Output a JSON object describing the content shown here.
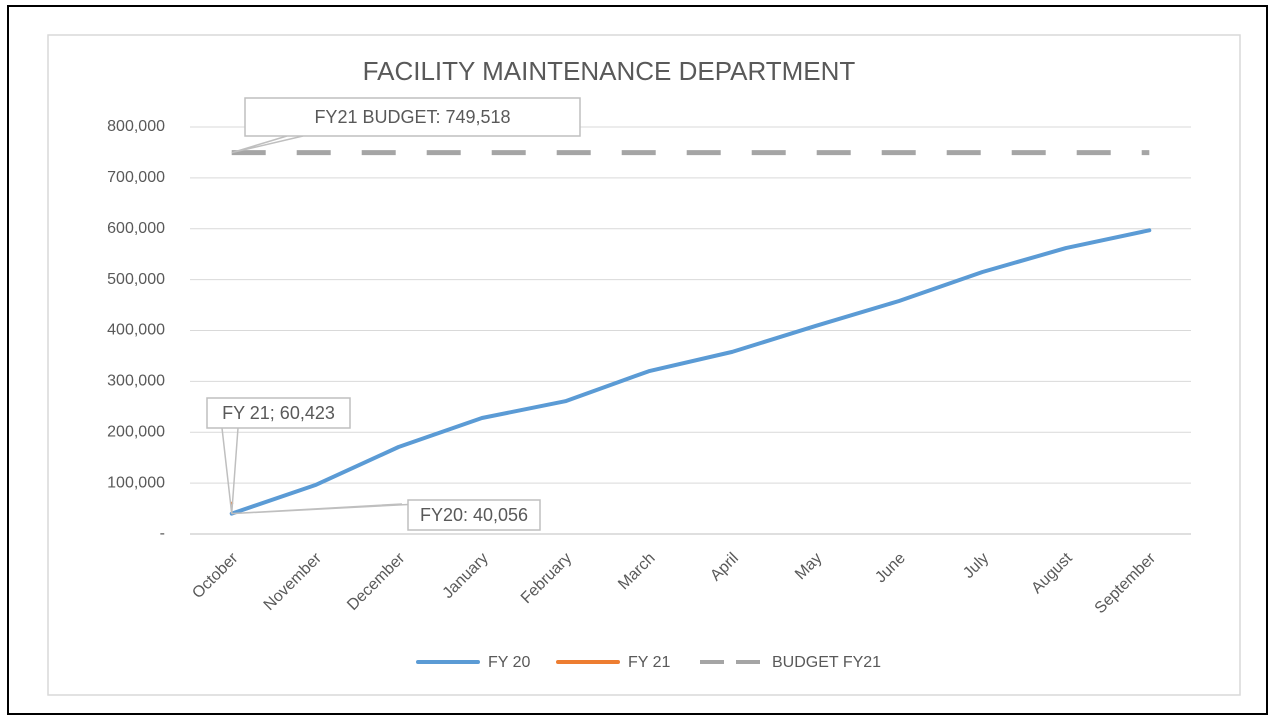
{
  "chart_data": {
    "type": "line",
    "title": "FACILITY MAINTENANCE DEPARTMENT",
    "categories": [
      "October",
      "November",
      "December",
      "January",
      "February",
      "March",
      "April",
      "May",
      "June",
      "July",
      "August",
      "September"
    ],
    "series": [
      {
        "name": "FY 20",
        "color": "#5b9bd5",
        "values": [
          40056,
          96000,
          171000,
          228000,
          261000,
          320000,
          358000,
          409000,
          458000,
          515000,
          562000,
          597000
        ],
        "value_labels": [
          "FY20: 40,056",
          null,
          null,
          null,
          null,
          null,
          null,
          null,
          null,
          null,
          null,
          null
        ]
      },
      {
        "name": "FY 21",
        "color": "#ed7d31",
        "values": [
          60423,
          null,
          null,
          null,
          null,
          null,
          null,
          null,
          null,
          null,
          null,
          null
        ],
        "value_labels": [
          "FY 21; 60,423",
          null,
          null,
          null,
          null,
          null,
          null,
          null,
          null,
          null,
          null,
          null
        ]
      },
      {
        "name": "BUDGET FY21",
        "color": "#a5a5a5",
        "dashed": true,
        "values": [
          749518,
          749518,
          749518,
          749518,
          749518,
          749518,
          749518,
          749518,
          749518,
          749518,
          749518,
          749518
        ],
        "value_labels": [
          "FY21 BUDGET: 749,518",
          null,
          null,
          null,
          null,
          null,
          null,
          null,
          null,
          null,
          null,
          null
        ]
      }
    ],
    "ylim": [
      0,
      800000
    ],
    "yticks": [
      {
        "value": 0,
        "label": "-"
      },
      {
        "value": 100000,
        "label": "100,000"
      },
      {
        "value": 200000,
        "label": "200,000"
      },
      {
        "value": 300000,
        "label": "300,000"
      },
      {
        "value": 400000,
        "label": "400,000"
      },
      {
        "value": 500000,
        "label": "500,000"
      },
      {
        "value": 600000,
        "label": "600,000"
      },
      {
        "value": 700000,
        "label": "700,000"
      },
      {
        "value": 800000,
        "label": "800,000"
      }
    ],
    "grid": true,
    "legend": "bottom"
  }
}
